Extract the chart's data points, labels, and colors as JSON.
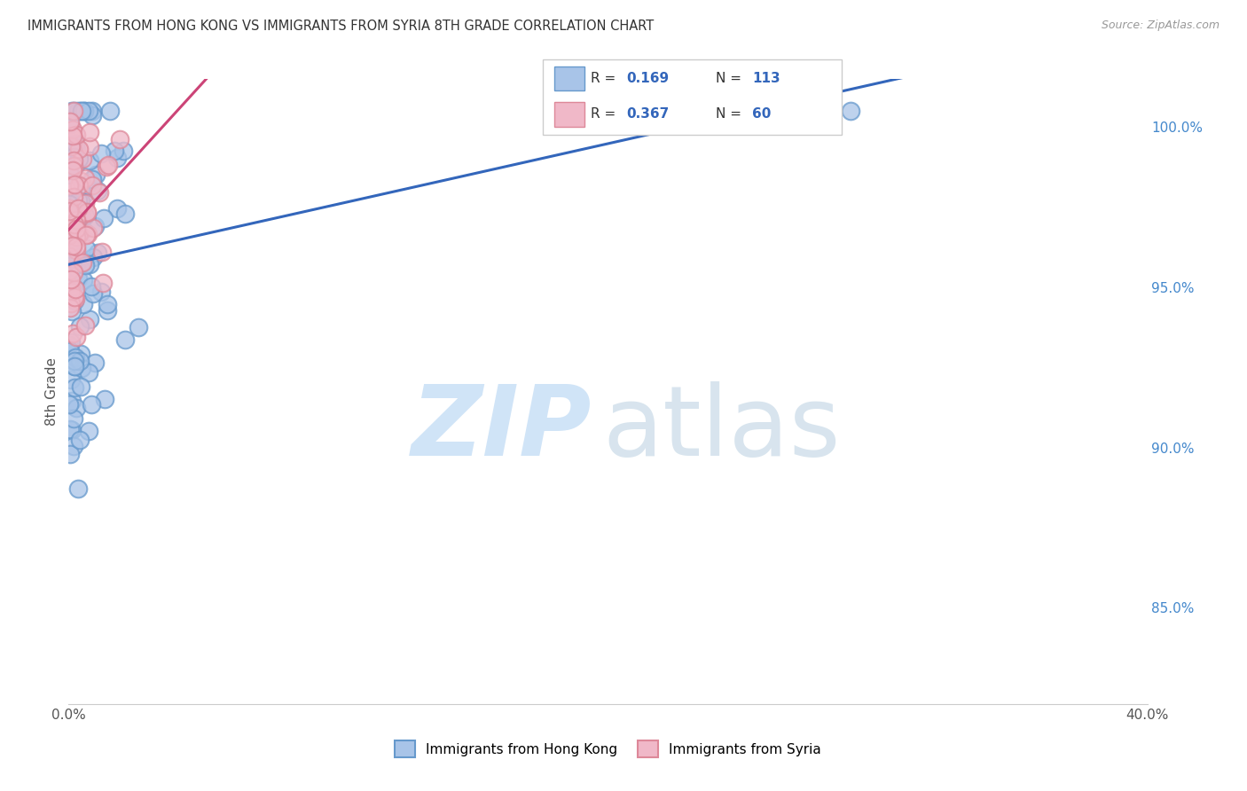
{
  "title": "IMMIGRANTS FROM HONG KONG VS IMMIGRANTS FROM SYRIA 8TH GRADE CORRELATION CHART",
  "source": "Source: ZipAtlas.com",
  "ylabel": "8th Grade",
  "xlim": [
    0.0,
    40.0
  ],
  "ylim": [
    82.0,
    101.5
  ],
  "x_tick_positions": [
    0.0,
    5.0,
    10.0,
    15.0,
    20.0,
    25.0,
    30.0,
    35.0,
    40.0
  ],
  "x_tick_labels": [
    "0.0%",
    "",
    "",
    "",
    "",
    "",
    "",
    "",
    "40.0%"
  ],
  "y_ticks": [
    85.0,
    90.0,
    95.0,
    100.0
  ],
  "y_tick_labels": [
    "85.0%",
    "90.0%",
    "95.0%",
    "100.0%"
  ],
  "hk_color": "#a8c4e8",
  "syria_color": "#f0b8c8",
  "hk_edge": "#6699cc",
  "syria_edge": "#dd8899",
  "trendline_hk": "#3366bb",
  "trendline_syria": "#cc4477",
  "R_hk": 0.169,
  "N_hk": 113,
  "R_syria": 0.367,
  "N_syria": 60,
  "grid_color": "#cccccc",
  "background": "#ffffff",
  "title_color": "#333333",
  "source_color": "#999999",
  "ylabel_color": "#555555",
  "right_tick_color": "#4488cc",
  "legend_edge_color": "#cccccc",
  "legend_text_color": "#333333",
  "legend_value_color": "#3366bb",
  "watermark_zip_color": "#d0e4f7",
  "watermark_atlas_color": "#b8cfe0"
}
